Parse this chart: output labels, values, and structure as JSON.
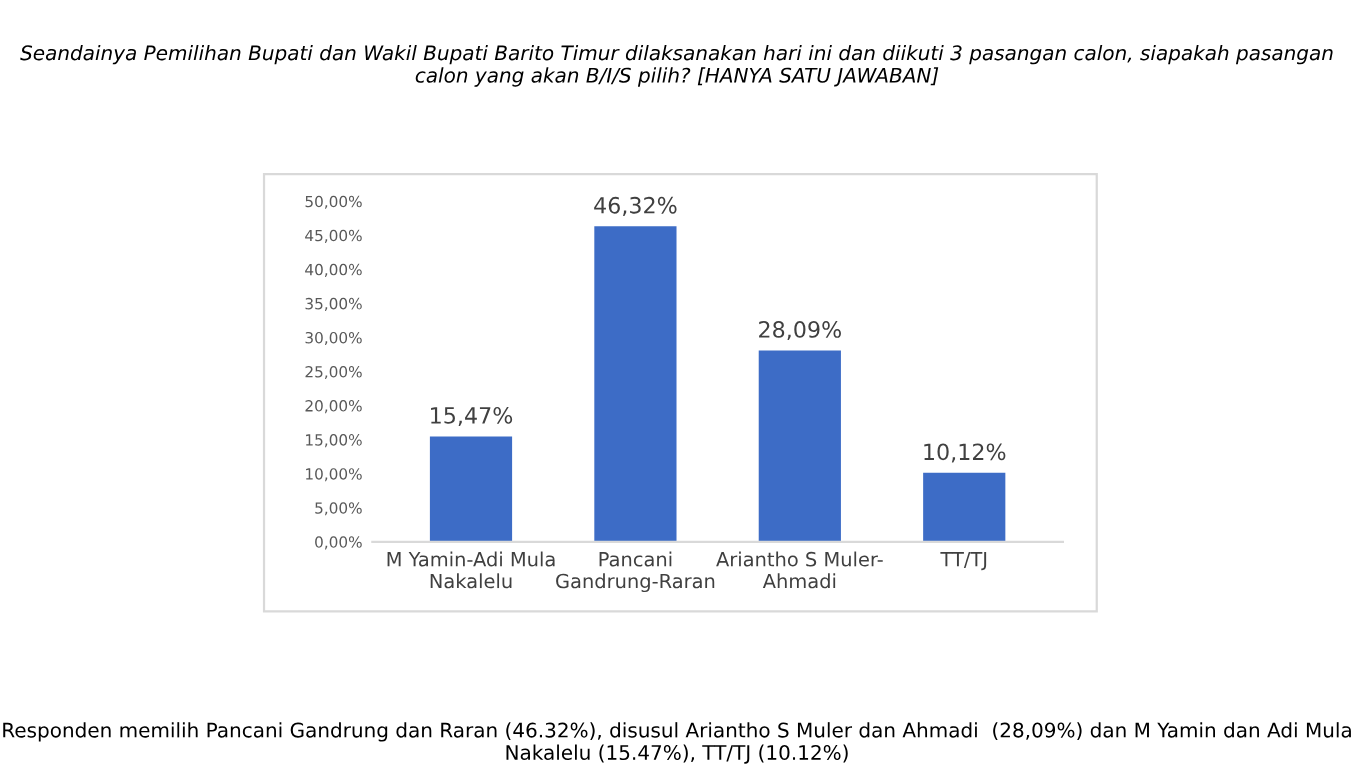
{
  "chart_data": {
    "type": "bar",
    "title": "Seandainya Pemilihan Bupati dan Wakil Bupati Barito Timur dilaksanakan hari ini dan diikuti 3 pasangan calon, siapakah pasangan calon yang akan B/I/S pilih? [HANYA SATU JAWABAN]",
    "categories": [
      "M Yamin-Adi Mula\nNakalelu",
      "Pancani\nGandrung-Raran",
      "Ariantho S Muler-\nAhmadi",
      "TT/TJ"
    ],
    "values": [
      15.47,
      46.32,
      28.09,
      10.12
    ],
    "value_labels": [
      "15,47%",
      "46,32%",
      "28,09%",
      "10,12%"
    ],
    "color": "#3d6cc6",
    "ylim": [
      0,
      50
    ],
    "yticks": [
      {
        "value": 0,
        "label": "0,00%"
      },
      {
        "value": 5,
        "label": "5,00%"
      },
      {
        "value": 10,
        "label": "10,00%"
      },
      {
        "value": 15,
        "label": "15,00%"
      },
      {
        "value": 20,
        "label": "20,00%"
      },
      {
        "value": 25,
        "label": "25,00%"
      },
      {
        "value": 30,
        "label": "30,00%"
      },
      {
        "value": 35,
        "label": "35,00%"
      },
      {
        "value": 40,
        "label": "40,00%"
      },
      {
        "value": 45,
        "label": "45,00%"
      },
      {
        "value": 50,
        "label": "50,00%"
      }
    ],
    "annotations": [
      "Responden memilih Pancani Gandrung dan Raran (46.32%), disusul Ariantho S Muler dan Ahmadi  (28,09%) dan M Yamin dan Adi Mula Nakalelu (15.47%), TT/TJ (10.12%)"
    ]
  }
}
